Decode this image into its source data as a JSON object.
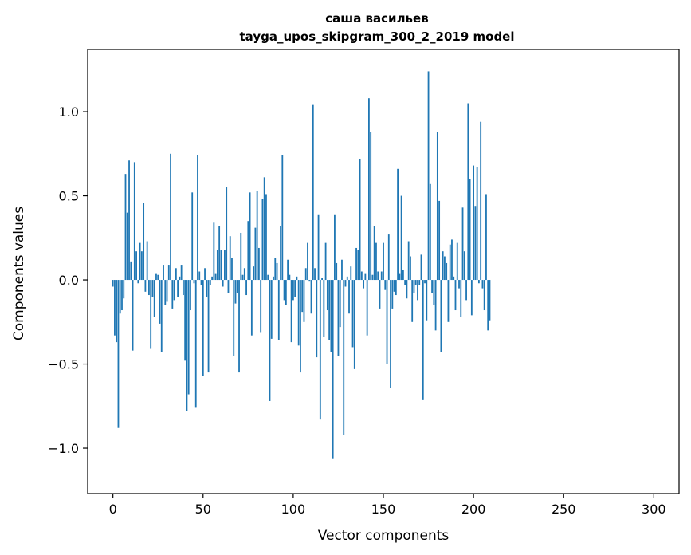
{
  "chart_data": {
    "type": "bar",
    "title": "саша васильев",
    "subtitle": "tayga_upos_skipgram_300_2_2019 model",
    "xlabel": "Vector components",
    "ylabel": "Components values",
    "xlim": [
      -14,
      314
    ],
    "ylim": [
      -1.27,
      1.37
    ],
    "xticks": [
      0,
      50,
      100,
      150,
      200,
      250,
      300
    ],
    "xtick_labels": [
      "0",
      "50",
      "100",
      "150",
      "200",
      "250",
      "300"
    ],
    "yticks": [
      -1.0,
      -0.5,
      0.0,
      0.5,
      1.0
    ],
    "ytick_labels": [
      "−1.0",
      "−0.5",
      "0.0",
      "0.5",
      "1.0"
    ],
    "bar_color": "#1f77b4",
    "x_start": 0,
    "values": [
      -0.04,
      -0.33,
      -0.37,
      -0.88,
      -0.2,
      -0.18,
      -0.11,
      0.63,
      0.4,
      0.71,
      0.11,
      -0.42,
      0.7,
      0.17,
      -0.02,
      0.22,
      0.17,
      0.46,
      -0.07,
      0.23,
      -0.09,
      -0.41,
      -0.1,
      -0.22,
      0.04,
      0.03,
      -0.26,
      -0.43,
      0.09,
      -0.15,
      -0.13,
      0.09,
      0.75,
      -0.17,
      -0.12,
      0.07,
      -0.1,
      0.02,
      0.09,
      -0.09,
      -0.48,
      -0.78,
      -0.68,
      -0.18,
      0.52,
      -0.02,
      -0.76,
      0.74,
      0.05,
      -0.03,
      -0.57,
      0.07,
      -0.1,
      -0.55,
      -0.03,
      0.02,
      0.34,
      0.04,
      0.18,
      0.32,
      0.18,
      -0.04,
      0.18,
      0.55,
      -0.08,
      0.26,
      0.13,
      -0.45,
      -0.14,
      -0.08,
      -0.55,
      0.28,
      0.03,
      0.07,
      -0.09,
      0.35,
      0.52,
      -0.33,
      0.08,
      0.31,
      0.53,
      0.19,
      -0.31,
      0.48,
      0.61,
      0.51,
      0.03,
      -0.72,
      -0.35,
      0.02,
      0.13,
      0.1,
      -0.36,
      0.32,
      0.74,
      -0.12,
      -0.15,
      0.12,
      0.03,
      -0.37,
      -0.12,
      -0.1,
      0.02,
      -0.39,
      -0.55,
      -0.19,
      -0.25,
      0.07,
      0.22,
      -0.01,
      -0.2,
      1.04,
      0.07,
      -0.46,
      0.39,
      -0.83,
      0.01,
      -0.34,
      0.22,
      -0.18,
      -0.36,
      -0.43,
      -1.06,
      0.39,
      0.1,
      -0.45,
      -0.28,
      0.12,
      -0.92,
      -0.04,
      0.02,
      -0.2,
      0.08,
      -0.4,
      -0.53,
      0.19,
      0.18,
      0.72,
      0.05,
      -0.05,
      0.04,
      -0.33,
      1.08,
      0.88,
      0.03,
      0.32,
      0.22,
      0.05,
      -0.17,
      0.05,
      0.22,
      -0.06,
      -0.5,
      0.27,
      -0.64,
      -0.17,
      -0.07,
      -0.09,
      0.66,
      0.04,
      0.5,
      0.06,
      -0.03,
      -0.11,
      0.23,
      0.14,
      -0.25,
      -0.08,
      -0.03,
      -0.12,
      -0.03,
      0.15,
      -0.71,
      -0.02,
      -0.24,
      1.24,
      0.57,
      -0.08,
      -0.15,
      -0.3,
      0.88,
      0.47,
      -0.43,
      0.17,
      0.14,
      0.1,
      -0.25,
      0.21,
      0.24,
      0.02,
      -0.18,
      0.22,
      -0.05,
      -0.22,
      0.43,
      0.17,
      -0.12,
      1.05,
      0.6,
      -0.21,
      0.68,
      0.44,
      0.67,
      -0.02,
      0.94,
      -0.05,
      -0.18,
      0.51,
      -0.3,
      -0.24
    ]
  }
}
